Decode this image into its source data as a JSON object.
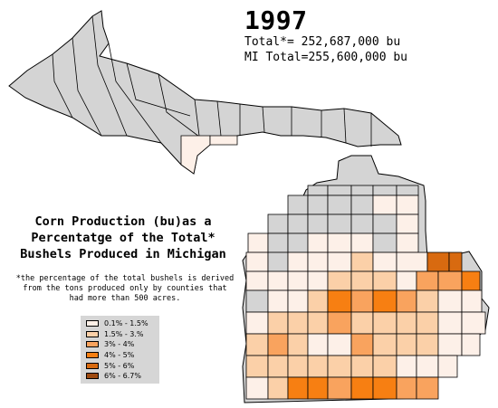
{
  "header": {
    "year": "1997",
    "total_line": "Total*= 252,687,000 bu",
    "mi_total_line": "MI Total=255,600,000 bu"
  },
  "map_title": {
    "line1": "Corn Production (bu)as a",
    "line2": "Percentatge of the Total*",
    "line3": "Bushels Produced in Michigan"
  },
  "footnote": {
    "line1": "*the percentage of the total bushels is derived",
    "line2": "from the tons produced only by counties that",
    "line3": "had more than 500 acres."
  },
  "legend": [
    {
      "label": "0.1% - 1.5%",
      "color": "#fdf0e8"
    },
    {
      "label": "1.5% - 3.%",
      "color": "#fbd0a8"
    },
    {
      "label": "3% - 4%",
      "color": "#f9a35e"
    },
    {
      "label": "4% - 5%",
      "color": "#f77f12"
    },
    {
      "label": "5% - 6%",
      "color": "#d86a10"
    },
    {
      "label": "6% - 6.7%",
      "color": "#9e4a10"
    }
  ],
  "colors": {
    "no_data": "#d4d4d4",
    "county_border": "#000000",
    "background": "#ffffff"
  }
}
